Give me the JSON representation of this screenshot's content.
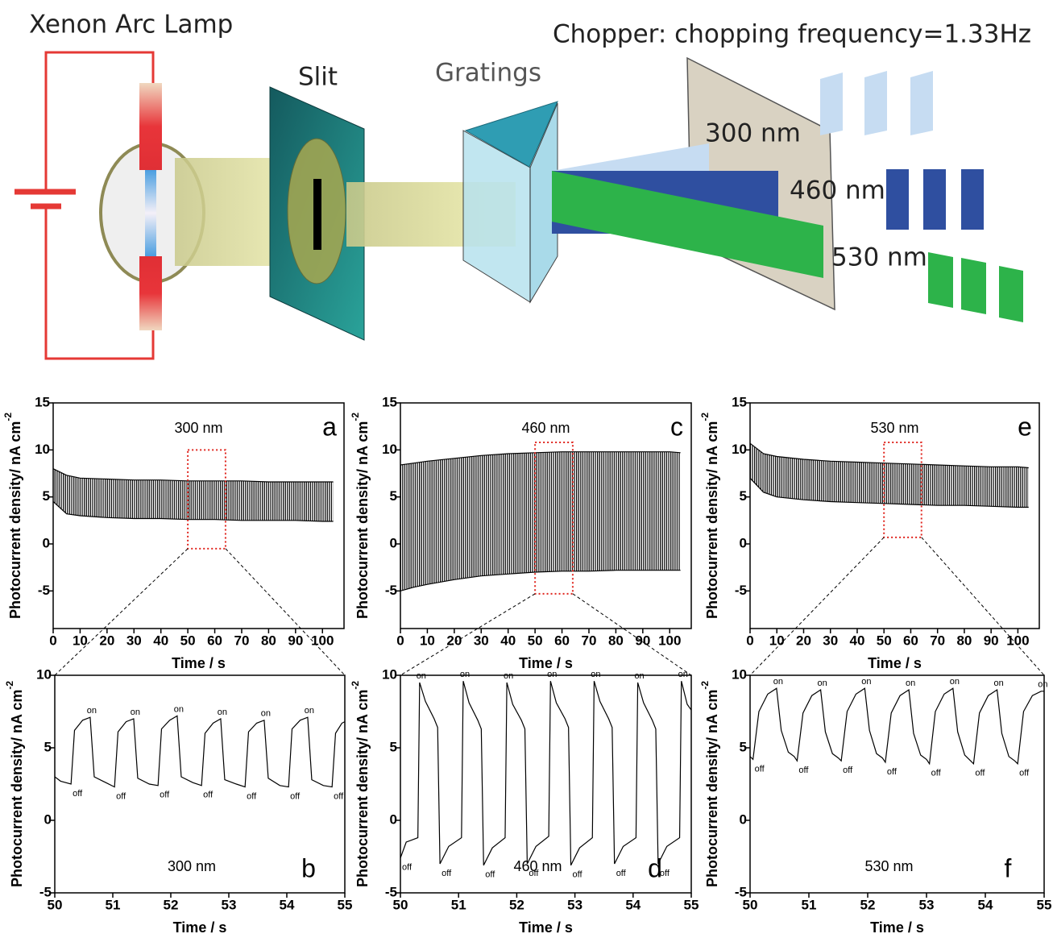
{
  "diagram": {
    "lamp_label": "Xenon Arc Lamp",
    "slit_label": "Slit",
    "gratings_label": "Gratings",
    "chopper_label": "Chopper: chopping frequency=1.33Hz",
    "beam_labels": [
      "300 nm",
      "460 nm",
      "530 nm"
    ]
  },
  "chart_data": [
    {
      "type": "band",
      "panel_label": "a",
      "annotation": "300 nm",
      "xlabel": "Time / s",
      "ylabel": "Photocurrent density/ nA cm",
      "ylabel_superscript": "-2",
      "xlim": [
        0,
        108
      ],
      "ylim": [
        -9,
        15
      ],
      "xticks": [
        0,
        10,
        20,
        30,
        40,
        50,
        60,
        70,
        80,
        90,
        100
      ],
      "yticks": [
        -5,
        0,
        5,
        10,
        15
      ],
      "x": [
        0,
        5,
        10,
        20,
        30,
        40,
        50,
        60,
        70,
        80,
        90,
        100,
        104
      ],
      "color": "#000000",
      "fill_between": true,
      "series": [
        {
          "values": [
            8.0,
            7.3,
            7.0,
            6.9,
            6.8,
            6.8,
            6.7,
            6.7,
            6.7,
            6.6,
            6.6,
            6.6,
            6.6
          ]
        },
        {
          "values": [
            4.5,
            3.2,
            3.0,
            2.8,
            2.7,
            2.7,
            2.6,
            2.6,
            2.5,
            2.5,
            2.5,
            2.4,
            2.4
          ]
        }
      ],
      "highlight": {
        "xlim": [
          50,
          64
        ],
        "ylim": [
          -0.5,
          10
        ]
      }
    },
    {
      "type": "line",
      "panel_label": "b",
      "annotation": "300 nm",
      "xlabel": "Time / s",
      "ylabel": "Photocurrent density/ nA cm",
      "ylabel_superscript": "-2",
      "xlim": [
        50,
        55
      ],
      "ylim": [
        -5,
        10
      ],
      "xticks": [
        50,
        51,
        52,
        53,
        54,
        55
      ],
      "yticks": [
        -5,
        0,
        5,
        10
      ],
      "color": "#000000",
      "on_label": "on",
      "off_label": "off",
      "x": [
        50.0,
        50.1,
        50.28,
        50.34,
        50.48,
        50.61,
        50.68,
        50.88,
        51.03,
        51.09,
        51.23,
        51.36,
        51.43,
        51.63,
        51.78,
        51.84,
        51.98,
        52.11,
        52.18,
        52.38,
        52.53,
        52.59,
        52.73,
        52.86,
        52.93,
        53.13,
        53.28,
        53.34,
        53.48,
        53.61,
        53.68,
        53.88,
        54.03,
        54.09,
        54.23,
        54.36,
        54.43,
        54.63,
        54.78,
        54.84,
        54.95,
        55.0
      ],
      "series": [
        {
          "values": [
            3.0,
            2.7,
            2.5,
            6.2,
            6.9,
            7.1,
            3.0,
            2.6,
            2.3,
            6.1,
            6.8,
            7.0,
            2.9,
            2.5,
            2.4,
            6.3,
            6.9,
            7.2,
            3.0,
            2.6,
            2.4,
            6.0,
            6.7,
            7.0,
            2.8,
            2.5,
            2.3,
            6.1,
            6.7,
            6.9,
            2.9,
            2.4,
            2.3,
            6.3,
            6.9,
            7.1,
            2.8,
            2.4,
            2.3,
            6.0,
            6.7,
            6.8
          ]
        }
      ]
    },
    {
      "type": "band",
      "panel_label": "c",
      "annotation": "460 nm",
      "xlabel": "Time / s",
      "ylabel": "Photocurrent density/ nA cm",
      "ylabel_superscript": "-2",
      "xlim": [
        0,
        108
      ],
      "ylim": [
        -9,
        15
      ],
      "xticks": [
        0,
        10,
        20,
        30,
        40,
        50,
        60,
        70,
        80,
        90,
        100
      ],
      "yticks": [
        -5,
        0,
        5,
        10,
        15
      ],
      "x": [
        0,
        5,
        10,
        20,
        30,
        40,
        50,
        60,
        70,
        80,
        90,
        100,
        104
      ],
      "color": "#000000",
      "fill_between": true,
      "series": [
        {
          "values": [
            8.4,
            8.6,
            8.8,
            9.1,
            9.4,
            9.6,
            9.7,
            9.8,
            9.8,
            9.8,
            9.8,
            9.8,
            9.7
          ]
        },
        {
          "values": [
            -5.0,
            -4.6,
            -4.3,
            -3.8,
            -3.4,
            -3.2,
            -3.0,
            -2.9,
            -2.9,
            -2.8,
            -2.8,
            -2.8,
            -2.8
          ]
        }
      ],
      "highlight": {
        "xlim": [
          50,
          64
        ],
        "ylim": [
          -5.3,
          10.8
        ]
      }
    },
    {
      "type": "line",
      "panel_label": "d",
      "annotation": "460 nm",
      "xlabel": "Time / s",
      "ylabel": "Photocurrent density/ nA cm",
      "ylabel_superscript": "-2",
      "xlim": [
        50,
        55
      ],
      "ylim": [
        -5,
        10
      ],
      "xticks": [
        50,
        51,
        52,
        53,
        54,
        55
      ],
      "yticks": [
        -5,
        0,
        5,
        10
      ],
      "color": "#000000",
      "on_label": "on",
      "off_label": "off",
      "x": [
        50.0,
        50.1,
        50.3,
        50.33,
        50.43,
        50.58,
        50.64,
        50.68,
        50.83,
        51.05,
        51.08,
        51.18,
        51.33,
        51.39,
        51.43,
        51.58,
        51.8,
        51.83,
        51.93,
        52.08,
        52.14,
        52.18,
        52.33,
        52.55,
        52.58,
        52.68,
        52.83,
        52.89,
        52.93,
        53.08,
        53.3,
        53.33,
        53.43,
        53.58,
        53.64,
        53.68,
        53.83,
        54.05,
        54.08,
        54.18,
        54.33,
        54.39,
        54.43,
        54.58,
        54.8,
        54.83,
        54.93,
        55.0
      ],
      "series": [
        {
          "values": [
            -2.6,
            -1.5,
            -1.2,
            9.5,
            8.2,
            7.0,
            6.4,
            -3.0,
            -1.8,
            -1.2,
            9.6,
            8.1,
            6.9,
            6.3,
            -3.1,
            -1.9,
            -1.2,
            9.5,
            8.0,
            6.9,
            6.3,
            -3.0,
            -1.8,
            -1.1,
            9.6,
            8.1,
            7.0,
            6.4,
            -3.1,
            -1.9,
            -1.2,
            9.6,
            8.2,
            7.0,
            6.4,
            -3.0,
            -1.8,
            -1.2,
            9.5,
            8.1,
            6.9,
            6.3,
            -3.0,
            -1.8,
            -1.2,
            9.6,
            8.0,
            7.6
          ]
        }
      ]
    },
    {
      "type": "band",
      "panel_label": "e",
      "annotation": "530 nm",
      "xlabel": "Time / s",
      "ylabel": "Photocurrent density/ nA cm",
      "ylabel_superscript": "-2",
      "xlim": [
        0,
        108
      ],
      "ylim": [
        -9,
        15
      ],
      "xticks": [
        0,
        10,
        20,
        30,
        40,
        50,
        60,
        70,
        80,
        90,
        100
      ],
      "yticks": [
        -5,
        0,
        5,
        10,
        15
      ],
      "x": [
        0,
        5,
        10,
        20,
        30,
        40,
        50,
        60,
        70,
        80,
        90,
        100,
        104
      ],
      "color": "#000000",
      "fill_between": true,
      "series": [
        {
          "values": [
            10.7,
            9.6,
            9.3,
            9.0,
            8.8,
            8.7,
            8.6,
            8.5,
            8.4,
            8.3,
            8.2,
            8.2,
            8.1
          ]
        },
        {
          "values": [
            7.0,
            5.5,
            5.0,
            4.7,
            4.5,
            4.4,
            4.3,
            4.2,
            4.1,
            4.1,
            4.0,
            3.9,
            3.9
          ]
        }
      ],
      "highlight": {
        "xlim": [
          50,
          64
        ],
        "ylim": [
          0.7,
          10.8
        ]
      }
    },
    {
      "type": "line",
      "panel_label": "f",
      "annotation": "530 nm",
      "xlabel": "Time / s",
      "ylabel": "Photocurrent density/ nA cm",
      "ylabel_superscript": "-2",
      "xlim": [
        50,
        55
      ],
      "ylim": [
        -5,
        10
      ],
      "xticks": [
        50,
        51,
        52,
        53,
        54,
        55
      ],
      "yticks": [
        -5,
        0,
        5,
        10
      ],
      "color": "#000000",
      "on_label": "on",
      "off_label": "off",
      "x": [
        50.0,
        50.05,
        50.15,
        50.3,
        50.45,
        50.53,
        50.65,
        50.75,
        50.8,
        50.9,
        51.05,
        51.2,
        51.28,
        51.4,
        51.5,
        51.55,
        51.65,
        51.8,
        51.95,
        52.03,
        52.15,
        52.25,
        52.3,
        52.4,
        52.55,
        52.7,
        52.78,
        52.9,
        53.0,
        53.05,
        53.15,
        53.3,
        53.45,
        53.53,
        53.65,
        53.75,
        53.8,
        53.9,
        54.05,
        54.2,
        54.28,
        54.4,
        54.5,
        54.55,
        54.65,
        54.8,
        54.95,
        55.0
      ],
      "series": [
        {
          "values": [
            4.4,
            4.2,
            7.5,
            8.7,
            9.1,
            6.2,
            4.7,
            4.4,
            4.1,
            7.4,
            8.6,
            9.0,
            6.1,
            4.6,
            4.3,
            4.1,
            7.5,
            8.7,
            9.1,
            6.2,
            4.6,
            4.3,
            4.0,
            7.4,
            8.6,
            9.0,
            6.0,
            4.5,
            4.2,
            3.9,
            7.5,
            8.7,
            9.1,
            6.1,
            4.5,
            4.1,
            3.9,
            7.4,
            8.6,
            9.0,
            6.0,
            4.4,
            4.1,
            3.9,
            7.5,
            8.6,
            8.9,
            8.9
          ]
        }
      ]
    }
  ]
}
